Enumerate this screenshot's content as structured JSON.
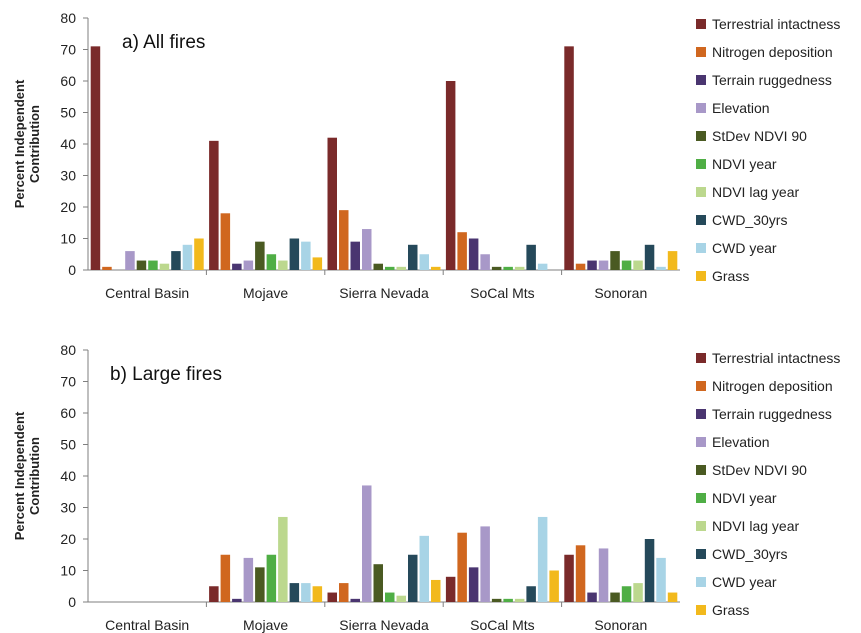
{
  "chart_data": [
    {
      "type": "bar",
      "title": "a) All fires",
      "ylabel": "Percent Independent Contribution",
      "ylim": [
        0,
        80
      ],
      "yticks": [
        0,
        10,
        20,
        30,
        40,
        50,
        60,
        70,
        80
      ],
      "categories": [
        "Central Basin",
        "Mojave",
        "Sierra Nevada",
        "SoCal Mts",
        "Sonoran"
      ],
      "legend_position": "right",
      "series": [
        {
          "name": "Terrestrial intactness",
          "color": "#7a2a2a",
          "values": [
            71,
            41,
            42,
            60,
            71
          ]
        },
        {
          "name": "Nitrogen deposition",
          "color": "#d0671f",
          "values": [
            1,
            18,
            19,
            12,
            2
          ]
        },
        {
          "name": "Terrain ruggedness",
          "color": "#4a3570",
          "values": [
            0,
            2,
            9,
            10,
            3
          ]
        },
        {
          "name": "Elevation",
          "color": "#a898c8",
          "values": [
            6,
            3,
            13,
            5,
            3
          ]
        },
        {
          "name": "StDev NDVI 90",
          "color": "#4a5a22",
          "values": [
            3,
            9,
            2,
            1,
            6
          ]
        },
        {
          "name": "NDVI year",
          "color": "#4fae45",
          "values": [
            3,
            5,
            1,
            1,
            3
          ]
        },
        {
          "name": "NDVI lag year",
          "color": "#bcd88e",
          "values": [
            2,
            3,
            1,
            1,
            3
          ]
        },
        {
          "name": "CWD_30yrs",
          "color": "#25495a",
          "values": [
            6,
            10,
            8,
            8,
            8
          ]
        },
        {
          "name": "CWD year",
          "color": "#a8d4e6",
          "values": [
            8,
            9,
            5,
            2,
            1
          ]
        },
        {
          "name": "Grass",
          "color": "#f2b91c",
          "values": [
            10,
            4,
            1,
            0,
            6
          ]
        }
      ]
    },
    {
      "type": "bar",
      "title": "b) Large fires",
      "ylabel": "Percent Independent Contribution",
      "ylim": [
        0,
        80
      ],
      "yticks": [
        0,
        10,
        20,
        30,
        40,
        50,
        60,
        70,
        80
      ],
      "categories": [
        "Central Basin",
        "Mojave",
        "Sierra Nevada",
        "SoCal Mts",
        "Sonoran"
      ],
      "legend_position": "right",
      "series": [
        {
          "name": "Terrestrial intactness",
          "color": "#7a2a2a",
          "values": [
            0,
            5,
            3,
            8,
            15
          ]
        },
        {
          "name": "Nitrogen deposition",
          "color": "#d0671f",
          "values": [
            0,
            15,
            6,
            22,
            18
          ]
        },
        {
          "name": "Terrain ruggedness",
          "color": "#4a3570",
          "values": [
            0,
            1,
            1,
            11,
            3
          ]
        },
        {
          "name": "Elevation",
          "color": "#a898c8",
          "values": [
            0,
            14,
            37,
            24,
            17
          ]
        },
        {
          "name": "StDev NDVI 90",
          "color": "#4a5a22",
          "values": [
            0,
            11,
            12,
            1,
            3
          ]
        },
        {
          "name": "NDVI year",
          "color": "#4fae45",
          "values": [
            0,
            15,
            3,
            1,
            5
          ]
        },
        {
          "name": "NDVI lag year",
          "color": "#bcd88e",
          "values": [
            0,
            27,
            2,
            1,
            6
          ]
        },
        {
          "name": "CWD_30yrs",
          "color": "#25495a",
          "values": [
            0,
            6,
            15,
            5,
            20
          ]
        },
        {
          "name": "CWD year",
          "color": "#a8d4e6",
          "values": [
            0,
            6,
            21,
            27,
            14
          ]
        },
        {
          "name": "Grass",
          "color": "#f2b91c",
          "values": [
            0,
            5,
            7,
            10,
            3
          ]
        }
      ]
    }
  ]
}
